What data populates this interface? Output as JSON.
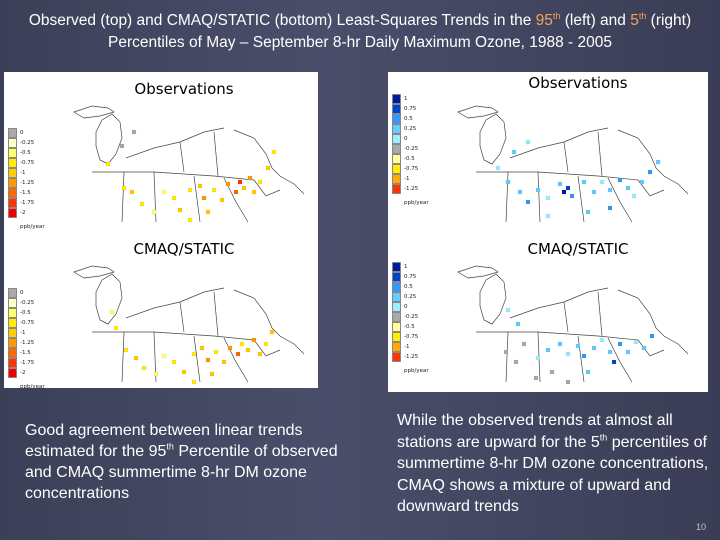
{
  "title": {
    "part1": "Observed (top) and CMAQ/STATIC (bottom) Least-Squares Trends in the ",
    "p95": "95",
    "sup_th_a": "th",
    "part2": " (left) and ",
    "p5": "5",
    "sup_th_b": "th",
    "part3": " (right) Percentiles of May – September 8-hr Daily Maximum Ozone, 1988 - 2005"
  },
  "panels": [
    {
      "label": "Observations",
      "legend": "left"
    },
    {
      "label": "Observations",
      "legend": "right"
    },
    {
      "label": "CMAQ/STATIC",
      "legend": "left"
    },
    {
      "label": "CMAQ/STATIC",
      "legend": "right"
    }
  ],
  "legend_left": {
    "values": [
      "0",
      "-0.25",
      "-0.5",
      "-0.75",
      "-1",
      "-1.25",
      "-1.5",
      "-1.75",
      "-2"
    ],
    "colors": [
      "#aaaaaa",
      "#ffffcc",
      "#ffff66",
      "#ffee00",
      "#ffcc00",
      "#ff9900",
      "#ff6600",
      "#ff3300",
      "#ee0000"
    ],
    "unit": "ppb/year"
  },
  "legend_right": {
    "values": [
      "1",
      "0.75",
      "0.5",
      "0.25",
      "0",
      "-0.25",
      "-0.5",
      "-0.75",
      "-1",
      "-1.25"
    ],
    "colors": [
      "#001a99",
      "#0044cc",
      "#3399ff",
      "#66ccff",
      "#99eeff",
      "#aaaaaa",
      "#ffff99",
      "#ffee00",
      "#ffaa00",
      "#ff3300"
    ],
    "unit": "ppb/year"
  },
  "left_text": {
    "a": "Good agreement between linear trends estimated for the 95",
    "sup": "th",
    "b": " Percentile of observed and CMAQ summertime 8-hr DM ozone concentrations"
  },
  "right_text": {
    "a": "While the observed trends at almost all stations are upward for the 5",
    "sup": "th",
    "b": " percentiles of summertime 8-hr DM ozone concentrations, CMAQ shows a mixture of upward and downward trends"
  },
  "page_number": "10",
  "colors": {
    "background": "#41455f",
    "highlight": "#f5a35a",
    "text": "#ffffff"
  }
}
